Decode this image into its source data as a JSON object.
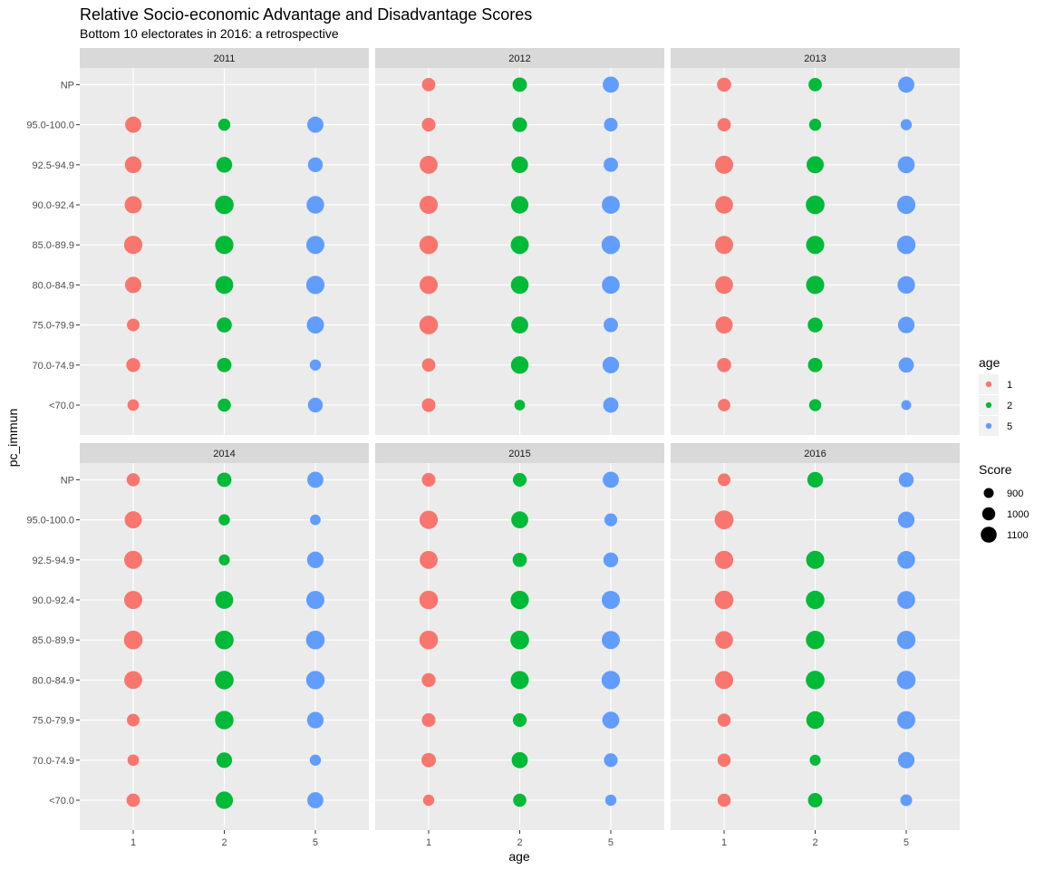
{
  "chart_data": {
    "type": "scatter",
    "title": "Relative Socio-economic Advantage and Disadvantage Scores",
    "subtitle": "Bottom 10 electorates in 2016: a retrospective",
    "xlabel": "age",
    "ylabel": "pc_immun",
    "x_categories": [
      "1",
      "2",
      "5"
    ],
    "y_categories": [
      "<70.0",
      "70.0-74.9",
      "75.0-79.9",
      "80.0-84.9",
      "85.0-89.9",
      "90.0-92.4",
      "92.5-94.9",
      "95.0-100.0",
      "NP"
    ],
    "facets": [
      "2011",
      "2012",
      "2013",
      "2014",
      "2015",
      "2016"
    ],
    "facet_layout": {
      "columns": 3,
      "rows": 2
    },
    "grid": true,
    "legend_position": "right",
    "color_legend": {
      "title": "age",
      "entries": [
        {
          "label": "1",
          "color": "#F8766D"
        },
        {
          "label": "2",
          "color": "#00BA38"
        },
        {
          "label": "5",
          "color": "#619CFF"
        }
      ]
    },
    "size_legend": {
      "title": "Score",
      "entries": [
        {
          "label": "900",
          "value": 900
        },
        {
          "label": "1000",
          "value": 1000
        },
        {
          "label": "1100",
          "value": 1100
        }
      ]
    },
    "series_note_order": "values listed per facet as [age1, age2, age5] for each pc_immun category in y_categories order",
    "panels": [
      {
        "facet": "2011",
        "values": {
          "<70.0": [
            905,
            935,
            970
          ],
          "70.0-74.9": [
            950,
            960,
            900
          ],
          "75.0-79.9": [
            925,
            975,
            1025
          ],
          "80.0-84.9": [
            1005,
            1045,
            1055
          ],
          "85.0-89.9": [
            1055,
            1055,
            1050
          ],
          "90.0-92.4": [
            1025,
            1065,
            1035
          ],
          "92.5-94.9": [
            1015,
            990,
            970
          ],
          "95.0-100.0": [
            1000,
            915,
            1000
          ],
          "NP": [
            null,
            null,
            null
          ]
        }
      },
      {
        "facet": "2012",
        "values": {
          "<70.0": [
            945,
            890,
            980
          ],
          "70.0-74.9": [
            940,
            1035,
            1010
          ],
          "75.0-79.9": [
            1065,
            1020,
            960
          ],
          "80.0-84.9": [
            1050,
            1040,
            1040
          ],
          "85.0-89.9": [
            1060,
            1050,
            1060
          ],
          "90.0-92.4": [
            1050,
            1030,
            1045
          ],
          "92.5-94.9": [
            1045,
            1010,
            960
          ],
          "95.0-100.0": [
            945,
            965,
            945
          ],
          "NP": [
            940,
            960,
            1000
          ]
        }
      },
      {
        "facet": "2013",
        "values": {
          "<70.0": [
            920,
            915,
            880
          ],
          "70.0-74.9": [
            955,
            960,
            980
          ],
          "75.0-79.9": [
            1025,
            970,
            1010
          ],
          "80.0-84.9": [
            1040,
            1050,
            1035
          ],
          "85.0-89.9": [
            1050,
            1050,
            1060
          ],
          "90.0-92.4": [
            1040,
            1065,
            1055
          ],
          "92.5-94.9": [
            1050,
            1025,
            1020
          ],
          "95.0-100.0": [
            940,
            915,
            900
          ],
          "NP": [
            955,
            940,
            1000
          ]
        }
      },
      {
        "facet": "2014",
        "values": {
          "<70.0": [
            940,
            1030,
            1000
          ],
          "70.0-74.9": [
            905,
            985,
            900
          ],
          "75.0-79.9": [
            925,
            1060,
            1010
          ],
          "80.0-84.9": [
            1045,
            1065,
            1060
          ],
          "85.0-89.9": [
            1065,
            1065,
            1065
          ],
          "90.0-92.4": [
            1050,
            1045,
            1050
          ],
          "92.5-94.9": [
            1050,
            895,
            1010
          ],
          "95.0-100.0": [
            1025,
            900,
            890
          ],
          "NP": [
            935,
            960,
            1000
          ]
        }
      },
      {
        "facet": "2015",
        "values": {
          "<70.0": [
            900,
            935,
            900
          ],
          "70.0-74.9": [
            960,
            1000,
            945
          ],
          "75.0-79.9": [
            945,
            945,
            1020
          ],
          "80.0-84.9": [
            950,
            1050,
            1060
          ],
          "85.0-89.9": [
            1065,
            1065,
            1050
          ],
          "90.0-92.4": [
            1065,
            1055,
            1050
          ],
          "92.5-94.9": [
            1045,
            955,
            970
          ],
          "95.0-100.0": [
            1055,
            1020,
            930
          ],
          "NP": [
            945,
            945,
            1000
          ]
        }
      },
      {
        "facet": "2016",
        "values": {
          "<70.0": [
            935,
            960,
            910
          ],
          "70.0-74.9": [
            935,
            895,
            1010
          ],
          "75.0-79.9": [
            935,
            1040,
            1050
          ],
          "80.0-84.9": [
            1050,
            1065,
            1065
          ],
          "85.0-89.9": [
            1040,
            1060,
            1060
          ],
          "90.0-92.4": [
            1065,
            1060,
            1045
          ],
          "92.5-94.9": [
            1055,
            1050,
            1040
          ],
          "95.0-100.0": [
            1070,
            null,
            1010
          ],
          "NP": [
            925,
            990,
            970
          ]
        }
      }
    ]
  }
}
